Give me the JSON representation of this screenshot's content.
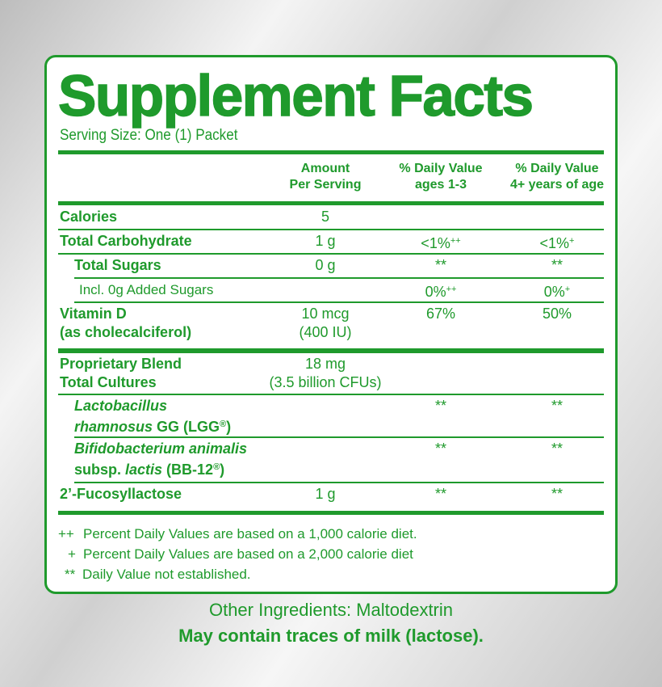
{
  "title": "Supplement Facts",
  "serving_size": "Serving Size: One (1) Packet",
  "columns": [
    [
      "Amount",
      "Per Serving"
    ],
    [
      "% Daily Value",
      "ages 1-3"
    ],
    [
      "% Daily Value",
      "4+ years of age"
    ]
  ],
  "rows": [
    {
      "name": [
        "Calories"
      ],
      "amount": [
        "5"
      ]
    },
    {
      "name": [
        "Total Carbohydrate"
      ],
      "amount": [
        "1 g"
      ],
      "dv1": [
        [
          {
            "t": "<1%"
          },
          {
            "t": "++",
            "sup": true
          }
        ]
      ],
      "dv2": [
        [
          {
            "t": "<1%"
          },
          {
            "t": "+",
            "sup": true
          }
        ]
      ]
    },
    {
      "name": [
        "Total Sugars"
      ],
      "indent": 1,
      "amount": [
        "0 g"
      ],
      "dv1": [
        "**"
      ],
      "dv2": [
        "**"
      ]
    },
    {
      "name": [
        "Incl. 0g Added Sugars"
      ],
      "indent": 2,
      "dv1": [
        [
          {
            "t": "0%"
          },
          {
            "t": "++",
            "sup": true
          }
        ]
      ],
      "dv2": [
        [
          {
            "t": "0%"
          },
          {
            "t": "+",
            "sup": true
          }
        ]
      ]
    },
    {
      "name": [
        "Vitamin D",
        "(as cholecalciferol)"
      ],
      "amount": [
        "10 mcg",
        "(400 IU)"
      ],
      "dv1": [
        "67%"
      ],
      "dv2": [
        "50%"
      ]
    },
    {
      "name": [
        "Proprietary Blend",
        "Total Cultures"
      ],
      "amount": [
        "18 mg",
        "(3.5 billion CFUs)"
      ]
    },
    {
      "name": [
        [
          {
            "t": "Lactobacillus",
            "i": true
          }
        ],
        [
          {
            "t": "rhamnosus",
            "i": true
          },
          {
            "t": " GG (LGG"
          },
          {
            "t": "®",
            "sup": true
          },
          {
            "t": ")"
          }
        ]
      ],
      "indent": 1,
      "dv1": [
        "**"
      ],
      "dv2": [
        "**"
      ]
    },
    {
      "name": [
        [
          {
            "t": "Bifidobacterium animalis",
            "i": true
          }
        ],
        [
          {
            "t": "subsp. "
          },
          {
            "t": "lactis",
            "i": true
          },
          {
            "t": " (BB-12"
          },
          {
            "t": "®",
            "sup": true
          },
          {
            "t": ")"
          }
        ]
      ],
      "indent": 1,
      "dv1": [
        "**"
      ],
      "dv2": [
        "**"
      ]
    },
    {
      "name": [
        "2’-Fucosyllactose"
      ],
      "amount": [
        "1 g"
      ],
      "dv1": [
        "**"
      ],
      "dv2": [
        "**"
      ]
    }
  ],
  "footnotes": [
    {
      "symbol": "++",
      "text": "Percent Daily Values are based on a 1,000 calorie diet."
    },
    {
      "symbol": "+",
      "text": "Percent Daily Values are based on a 2,000 calorie diet"
    },
    {
      "symbol": "**",
      "text": "Daily Value not established."
    }
  ],
  "other_ingredients": "Other Ingredients: Maltodextrin",
  "allergen": "May contain traces of milk (lactose)."
}
